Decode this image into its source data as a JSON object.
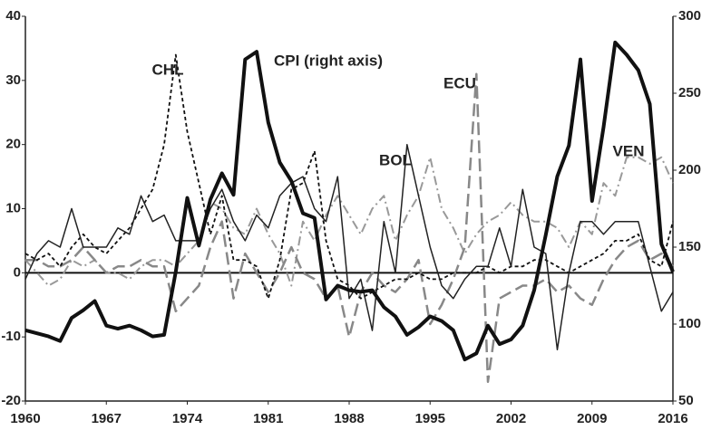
{
  "chart_data": {
    "type": "line",
    "annotations": [
      "CHL",
      "CPI (right axis)",
      "ECU",
      "BOL",
      "VEN"
    ],
    "x": [
      1960,
      1961,
      1962,
      1963,
      1964,
      1965,
      1966,
      1967,
      1968,
      1969,
      1970,
      1971,
      1972,
      1973,
      1974,
      1975,
      1976,
      1977,
      1978,
      1979,
      1980,
      1981,
      1982,
      1983,
      1984,
      1985,
      1986,
      1987,
      1988,
      1989,
      1990,
      1991,
      1992,
      1993,
      1994,
      1995,
      1996,
      1997,
      1998,
      1999,
      2000,
      2001,
      2002,
      2003,
      2004,
      2005,
      2006,
      2007,
      2008,
      2009,
      2010,
      2011,
      2012,
      2013,
      2014,
      2015,
      2016
    ],
    "xlim": [
      1960,
      2016
    ],
    "xticks": [
      1960,
      1967,
      1974,
      1981,
      1988,
      1995,
      2002,
      2009,
      2016
    ],
    "ylim": [
      -20,
      40
    ],
    "yticks": [
      -20,
      -10,
      0,
      10,
      20,
      30,
      40
    ],
    "y2lim": [
      50,
      300
    ],
    "y2ticks": [
      50,
      100,
      150,
      200,
      250,
      300
    ],
    "grid": false,
    "series": [
      {
        "name": "CPI (right axis)",
        "axis": "y2",
        "color": "#111111",
        "values": [
          96,
          94,
          92,
          89,
          104,
          109,
          115,
          99,
          97,
          99,
          96,
          92,
          93,
          134,
          182,
          151,
          181,
          198,
          184,
          272,
          277,
          231,
          205,
          193,
          172,
          169,
          116,
          125,
          122,
          121,
          122,
          111,
          105,
          93,
          98,
          105,
          102,
          96,
          77,
          81,
          99,
          87,
          90,
          99,
          122,
          158,
          196,
          216,
          272,
          180,
          228,
          283,
          275,
          265,
          243,
          152,
          134
        ]
      },
      {
        "name": "CHL",
        "color": "#111111",
        "values": [
          3,
          2,
          3,
          1,
          4,
          6,
          4,
          3,
          5,
          7,
          10,
          13,
          20,
          34,
          22,
          14,
          6,
          12,
          2,
          2,
          1,
          -4,
          2,
          13,
          14,
          19,
          5,
          -1,
          -2,
          -4,
          -3,
          -2,
          -1,
          -1,
          0,
          -1,
          -1,
          0,
          0,
          0,
          1,
          0,
          1,
          1,
          2,
          2,
          1,
          0,
          1,
          2,
          3,
          5,
          5,
          6,
          2,
          1,
          8
        ]
      },
      {
        "name": "BOL",
        "color": "#222222",
        "values": [
          -1,
          3,
          5,
          4,
          10,
          4,
          4,
          4,
          7,
          6,
          12,
          8,
          9,
          5,
          5,
          5,
          10,
          13,
          8,
          5,
          9,
          7,
          12,
          14,
          15,
          10,
          8,
          15,
          -4,
          -1,
          -9,
          8,
          0,
          20,
          12,
          4,
          -2,
          -4,
          -1,
          1,
          1,
          7,
          1,
          13,
          4,
          3,
          -12,
          0,
          8,
          8,
          6,
          8,
          8,
          8,
          1,
          -6,
          -3
        ]
      },
      {
        "name": "ECU",
        "color": "#888888",
        "values": [
          2,
          2,
          1,
          1,
          2,
          4,
          2,
          0,
          1,
          1,
          2,
          1,
          1,
          -6,
          -4,
          -2,
          4,
          8,
          -4,
          3,
          0,
          -3,
          0,
          4,
          0,
          -1,
          -4,
          -2,
          -10,
          -3,
          0,
          -2,
          -3,
          -1,
          2,
          -8,
          -5,
          -1,
          4,
          31,
          -17,
          -4,
          -3,
          -2,
          -2,
          -1,
          -3,
          -2,
          -4,
          -5,
          -1,
          2,
          4,
          5,
          2,
          3,
          1
        ]
      },
      {
        "name": "VEN",
        "color": "#999999",
        "values": [
          2,
          0,
          -2,
          -1,
          2,
          1,
          2,
          0,
          0,
          -1,
          1,
          2,
          2,
          1,
          3,
          5,
          11,
          10,
          7,
          6,
          10,
          6,
          3,
          -2,
          8,
          5,
          9,
          12,
          9,
          6,
          10,
          12,
          5,
          9,
          12,
          18,
          10,
          7,
          3,
          6,
          8,
          9,
          11,
          9,
          8,
          8,
          7,
          4,
          8,
          6,
          14,
          12,
          18,
          18,
          17,
          18,
          14
        ]
      }
    ]
  }
}
